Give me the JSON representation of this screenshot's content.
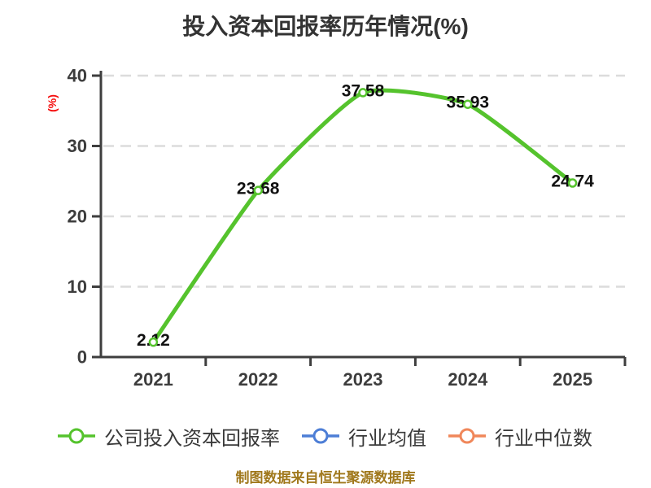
{
  "header": {
    "title": "投入资本回报率历年情况(%)",
    "title_color": "#333333"
  },
  "chart_data": {
    "type": "line",
    "smooth": true,
    "title": "投入资本回报率历年情况(%)",
    "categories": [
      "2021",
      "2022",
      "2023",
      "2024",
      "2025"
    ],
    "series": [
      {
        "name": "公司投入资本回报率",
        "color": "#55C32D",
        "marker": "circle-white-fill",
        "values": [
          2.12,
          23.68,
          37.58,
          35.93,
          24.74
        ],
        "data_labels": [
          "2.12",
          "23.68",
          "37.58",
          "35.93",
          "24.74"
        ]
      },
      {
        "name": "行业均值",
        "color": "#4D7ED6",
        "marker": "circle-white-fill",
        "values": []
      },
      {
        "name": "行业中位数",
        "color": "#F0875A",
        "marker": "circle-white-fill",
        "values": []
      }
    ],
    "xlabel": "",
    "ylabel": "(%)",
    "ylabel_color": "#F50D0D",
    "ylim": [
      0,
      40
    ],
    "yticks": [
      0,
      10,
      20,
      30,
      40
    ],
    "grid": {
      "horizontal_dashed": true,
      "color": "#DCDCDC"
    },
    "axis_color": "#3E3E3E",
    "tick_label_color": "#3D3D3D",
    "data_label_color": "#111111",
    "legend_position": "bottom"
  },
  "legend": {
    "items": [
      {
        "label": "公司投入资本回报率",
        "color": "#55C32D"
      },
      {
        "label": "行业均值",
        "color": "#4D7ED6"
      },
      {
        "label": "行业中位数",
        "color": "#F0875A"
      }
    ]
  },
  "footer": {
    "text": "制图数据来自恒生聚源数据库",
    "color": "#A0781C"
  }
}
